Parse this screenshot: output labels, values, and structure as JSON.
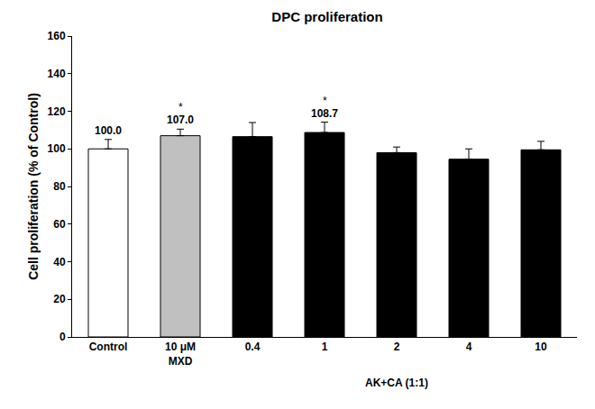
{
  "chart_data": {
    "type": "bar",
    "title": "DPC proliferation",
    "y_label": "Cell proliferation (% of Control)",
    "x_label": "AK+CA (1:1)",
    "categories": [
      "Control",
      "10 μM\nMXD",
      "0.4",
      "1",
      "2",
      "4",
      "10"
    ],
    "values": [
      100.0,
      107.0,
      106.5,
      108.7,
      98.0,
      94.5,
      99.5
    ],
    "errors": [
      5.0,
      3.5,
      7.5,
      5.5,
      3.0,
      5.5,
      4.5
    ],
    "value_labels": [
      "100.0",
      "107.0",
      null,
      "108.7",
      null,
      null,
      null
    ],
    "colors": [
      "#ffffff",
      "#c0c0c0",
      "#000000",
      "#000000",
      "#000000",
      "#000000",
      "#000000"
    ],
    "annotations": [
      {
        "category": "10 μM\nMXD",
        "text": "*"
      },
      {
        "category": "1",
        "text": "*"
      }
    ],
    "ylim": [
      0,
      160
    ],
    "yticks": [
      0,
      20,
      40,
      60,
      80,
      100,
      120,
      140,
      160
    ],
    "grid": false
  }
}
